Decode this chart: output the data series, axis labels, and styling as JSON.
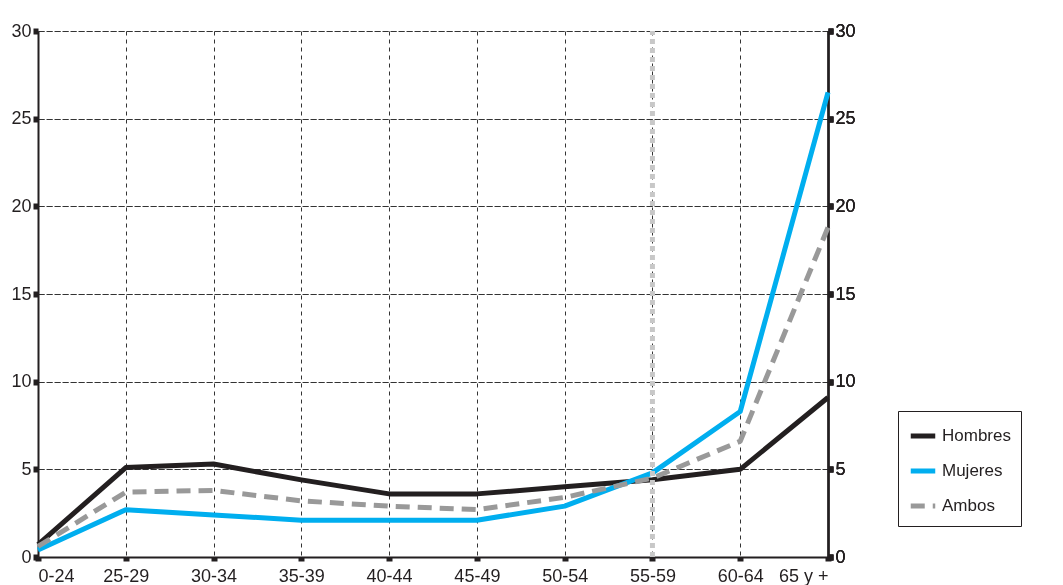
{
  "chart_data": {
    "type": "line",
    "categories": [
      "0-24",
      "25-29",
      "30-34",
      "35-39",
      "40-44",
      "45-49",
      "50-54",
      "55-59",
      "60-64",
      "65 y +"
    ],
    "series": [
      {
        "name": "Hombres",
        "color": "#231f20",
        "line_style": "solid",
        "values": [
          0.7,
          5.1,
          5.3,
          4.4,
          3.6,
          3.6,
          4.0,
          4.4,
          5.0,
          9.1
        ]
      },
      {
        "name": "Mujeres",
        "color": "#00aeef",
        "line_style": "solid",
        "values": [
          0.4,
          2.7,
          2.4,
          2.1,
          2.1,
          2.1,
          2.9,
          4.8,
          8.3,
          26.5
        ]
      },
      {
        "name": "Ambos",
        "color": "#999999",
        "line_style": "dashed",
        "values": [
          0.6,
          3.7,
          3.8,
          3.2,
          2.9,
          2.7,
          3.4,
          4.5,
          6.6,
          18.8
        ]
      }
    ],
    "ylim": [
      0,
      30
    ],
    "yticks": [
      0,
      5,
      10,
      15,
      20,
      25,
      30
    ],
    "y2lim": [
      0,
      30
    ],
    "y2ticks": [
      0,
      5,
      10,
      15,
      20,
      25,
      30
    ],
    "ref_lines": [
      {
        "axis": "x",
        "value": "55-59",
        "color": "#c8c8c8",
        "line_style": "dotted"
      }
    ],
    "grid": true,
    "legend": "bottom right",
    "marker": "none"
  }
}
